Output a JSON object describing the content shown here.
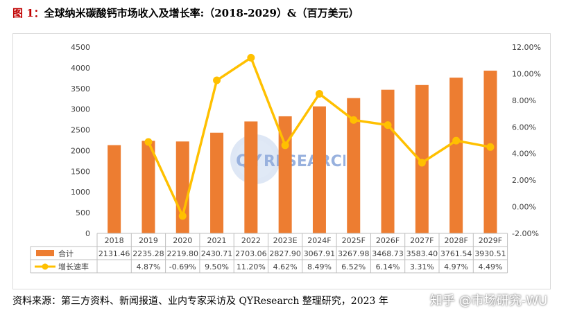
{
  "title": {
    "prefix": "图 1：",
    "text": "全球纳米碳酸钙市场收入及增长率:（2018-2029）&（百万美元）"
  },
  "source": "资料来源：第三方资料、新闻报道、业内专家采访及 QYResearch 整理研究，2023 年",
  "watermark": "知乎 @市场研究-WU",
  "logo_text": {
    "q": "QY",
    "r": "RESEARCH"
  },
  "colors": {
    "bar": "#ed7d31",
    "line": "#ffc000",
    "logo": "#4472c4",
    "logo_red": "#c00000"
  },
  "chart_data": {
    "type": "bar+line",
    "categories": [
      "2018",
      "2019",
      "2020",
      "2021",
      "2022",
      "2023E",
      "2024F",
      "2025F",
      "2026F",
      "2027F",
      "2028F",
      "2029F"
    ],
    "series": [
      {
        "name": "合计",
        "type": "bar",
        "axis": "left",
        "values": [
          2131.46,
          2235.28,
          2219.8,
          2430.71,
          2703.06,
          2827.9,
          3067.91,
          3267.98,
          3468.73,
          3583.4,
          3761.54,
          3930.51
        ],
        "labels": [
          "2131.46",
          "2235.28",
          "2219.80",
          "2430.71",
          "2703.06",
          "2827.90",
          "3067.91",
          "3267.98",
          "3468.73",
          "3583.40",
          "3761.54",
          "3930.51"
        ]
      },
      {
        "name": "增长速率",
        "type": "line",
        "axis": "right",
        "values": [
          null,
          4.87,
          -0.69,
          9.5,
          11.2,
          4.62,
          8.49,
          6.52,
          6.14,
          3.31,
          4.97,
          4.49
        ],
        "labels": [
          "",
          "4.87%",
          "-0.69%",
          "9.50%",
          "11.20%",
          "4.62%",
          "8.49%",
          "6.52%",
          "6.14%",
          "3.31%",
          "4.97%",
          "4.49%"
        ]
      }
    ],
    "y_left": {
      "min": 0,
      "max": 4500,
      "ticks": [
        "0",
        "500",
        "1000",
        "1500",
        "2000",
        "2500",
        "3000",
        "3500",
        "4000",
        "4500"
      ]
    },
    "y_right": {
      "min": -2,
      "max": 12,
      "ticks": [
        "-2.00%",
        "0.00%",
        "2.00%",
        "4.00%",
        "6.00%",
        "8.00%",
        "10.00%",
        "12.00%"
      ]
    },
    "grid": false,
    "legend": "data-table-below"
  }
}
